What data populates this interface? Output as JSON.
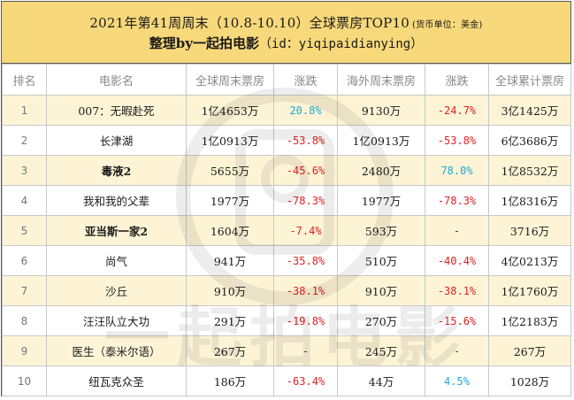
{
  "header": {
    "title": "2021年第41周周末（10.8-10.10）全球票房TOP10",
    "currency_note": "(货币单位：美金)",
    "subtitle_prefix": "整理by一起拍电影",
    "subtitle_suffix": "（id：yiqipaidianying）"
  },
  "watermark_text": "一起拍电影",
  "columns": [
    "排名",
    "电影名",
    "全球周末票房",
    "涨跌",
    "海外周末票房",
    "涨跌",
    "全球累计票房"
  ],
  "rows": [
    {
      "rank": "1",
      "title": "007：无暇赴死",
      "global_weekend": "1亿4653万",
      "global_change": "20.8%",
      "global_trend": "pos",
      "overseas_weekend": "9130万",
      "overseas_change": "-24.7%",
      "overseas_trend": "neg",
      "cumulative": "3亿1425万",
      "bold": false
    },
    {
      "rank": "2",
      "title": "长津湖",
      "global_weekend": "1亿0913万",
      "global_change": "-53.8%",
      "global_trend": "neg",
      "overseas_weekend": "1亿0913万",
      "overseas_change": "-53.8%",
      "overseas_trend": "neg",
      "cumulative": "6亿3686万",
      "bold": false
    },
    {
      "rank": "3",
      "title": "毒液2",
      "global_weekend": "5655万",
      "global_change": "-45.6%",
      "global_trend": "neg",
      "overseas_weekend": "2480万",
      "overseas_change": "78.0%",
      "overseas_trend": "pos",
      "cumulative": "1亿8532万",
      "bold": true
    },
    {
      "rank": "4",
      "title": "我和我的父辈",
      "global_weekend": "1977万",
      "global_change": "-78.3%",
      "global_trend": "neg",
      "overseas_weekend": "1977万",
      "overseas_change": "-78.3%",
      "overseas_trend": "neg",
      "cumulative": "1亿8316万",
      "bold": false
    },
    {
      "rank": "5",
      "title": "亚当斯一家2",
      "global_weekend": "1604万",
      "global_change": "-7.4%",
      "global_trend": "neg",
      "overseas_weekend": "593万",
      "overseas_change": "-",
      "overseas_trend": "flat",
      "cumulative": "3716万",
      "bold": true
    },
    {
      "rank": "6",
      "title": "尚气",
      "global_weekend": "941万",
      "global_change": "-35.8%",
      "global_trend": "neg",
      "overseas_weekend": "510万",
      "overseas_change": "-40.4%",
      "overseas_trend": "neg",
      "cumulative": "4亿0213万",
      "bold": false
    },
    {
      "rank": "7",
      "title": "沙丘",
      "global_weekend": "910万",
      "global_change": "-38.1%",
      "global_trend": "neg",
      "overseas_weekend": "910万",
      "overseas_change": "-38.1%",
      "overseas_trend": "neg",
      "cumulative": "1亿1760万",
      "bold": false
    },
    {
      "rank": "8",
      "title": "汪汪队立大功",
      "global_weekend": "291万",
      "global_change": "-19.8%",
      "global_trend": "neg",
      "overseas_weekend": "270万",
      "overseas_change": "-15.6%",
      "overseas_trend": "neg",
      "cumulative": "1亿2183万",
      "bold": false
    },
    {
      "rank": "9",
      "title": "医生（泰米尔语）",
      "global_weekend": "267万",
      "global_change": "-",
      "global_trend": "flat",
      "overseas_weekend": "245万",
      "overseas_change": "-",
      "overseas_trend": "flat",
      "cumulative": "267万",
      "bold": false
    },
    {
      "rank": "10",
      "title": "纽瓦克众圣",
      "global_weekend": "186万",
      "global_change": "-63.4%",
      "global_trend": "neg",
      "overseas_weekend": "44万",
      "overseas_change": "4.5%",
      "overseas_trend": "pos",
      "cumulative": "1028万",
      "bold": false
    }
  ],
  "colors": {
    "header_bg": "#f7d87a",
    "odd_row_bg": "#fdf4d6",
    "negative": "#e02020",
    "positive": "#1ea8d8"
  }
}
